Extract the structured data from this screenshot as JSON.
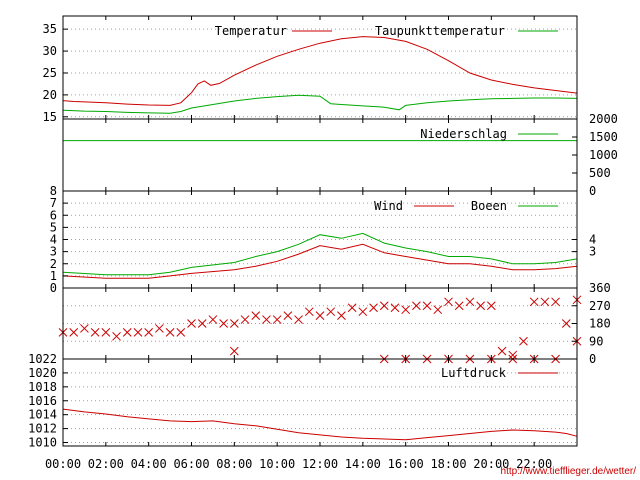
{
  "chart_data": [
    {
      "type": "line",
      "panel": "temperature",
      "yticks": [
        15,
        20,
        25,
        30,
        35
      ],
      "ylim": [
        14.5,
        38
      ],
      "grid": true,
      "legend_position": "top-right",
      "series": [
        {
          "name": "Temperatur",
          "color": "#cc0000",
          "points": [
            [
              0,
              18.7
            ],
            [
              0.5,
              18.5
            ],
            [
              1,
              18.4
            ],
            [
              2,
              18.2
            ],
            [
              3,
              17.9
            ],
            [
              4,
              17.7
            ],
            [
              5,
              17.6
            ],
            [
              5.5,
              18.2
            ],
            [
              6,
              20.5
            ],
            [
              6.3,
              22.5
            ],
            [
              6.6,
              23.2
            ],
            [
              6.9,
              22.2
            ],
            [
              7.3,
              22.6
            ],
            [
              8,
              24.5
            ],
            [
              9,
              26.8
            ],
            [
              10,
              28.8
            ],
            [
              11,
              30.4
            ],
            [
              12,
              31.8
            ],
            [
              13,
              32.8
            ],
            [
              14,
              33.3
            ],
            [
              15,
              33.1
            ],
            [
              16,
              32.2
            ],
            [
              17,
              30.4
            ],
            [
              18,
              27.8
            ],
            [
              19,
              25.0
            ],
            [
              20,
              23.4
            ],
            [
              21,
              22.4
            ],
            [
              22,
              21.6
            ],
            [
              23,
              21.0
            ],
            [
              24,
              20.4
            ]
          ]
        },
        {
          "name": "Taupunkttemperatur",
          "color": "#00aa00",
          "points": [
            [
              0,
              16.5
            ],
            [
              1,
              16.3
            ],
            [
              2,
              16.2
            ],
            [
              3,
              16.0
            ],
            [
              4,
              15.9
            ],
            [
              5,
              15.8
            ],
            [
              5.5,
              16.2
            ],
            [
              6,
              17.0
            ],
            [
              7,
              17.8
            ],
            [
              8,
              18.6
            ],
            [
              9,
              19.2
            ],
            [
              10,
              19.6
            ],
            [
              11,
              19.9
            ],
            [
              12,
              19.7
            ],
            [
              12.5,
              18.0
            ],
            [
              13,
              17.8
            ],
            [
              14,
              17.5
            ],
            [
              15,
              17.2
            ],
            [
              15.7,
              16.6
            ],
            [
              16,
              17.6
            ],
            [
              17,
              18.2
            ],
            [
              18,
              18.6
            ],
            [
              19,
              18.9
            ],
            [
              20,
              19.1
            ],
            [
              21,
              19.2
            ],
            [
              22,
              19.3
            ],
            [
              23,
              19.3
            ],
            [
              24,
              19.2
            ]
          ]
        }
      ]
    },
    {
      "type": "line",
      "panel": "precipitation",
      "yticks_right": [
        0,
        500,
        1000,
        1500,
        2000
      ],
      "ylim": [
        0,
        2000
      ],
      "grid": false,
      "legend_position": "top-right",
      "series": [
        {
          "name": "Niederschlag",
          "color": "#00aa00",
          "points": [
            [
              0,
              1400
            ],
            [
              24,
              1400
            ]
          ]
        }
      ]
    },
    {
      "type": "line",
      "panel": "wind",
      "yticks": [
        0,
        1,
        2,
        3,
        4,
        5,
        6,
        7,
        8
      ],
      "yticks_right": [
        3,
        4
      ],
      "ylim": [
        0,
        8
      ],
      "grid": true,
      "legend_position": "top-right",
      "series": [
        {
          "name": "Wind",
          "color": "#cc0000",
          "points": [
            [
              0,
              1.0
            ],
            [
              2,
              0.8
            ],
            [
              4,
              0.8
            ],
            [
              5,
              1.0
            ],
            [
              6,
              1.2
            ],
            [
              8,
              1.5
            ],
            [
              9,
              1.8
            ],
            [
              10,
              2.2
            ],
            [
              11,
              2.8
            ],
            [
              12,
              3.5
            ],
            [
              13,
              3.2
            ],
            [
              14,
              3.6
            ],
            [
              15,
              2.9
            ],
            [
              16,
              2.6
            ],
            [
              17,
              2.3
            ],
            [
              18,
              2.0
            ],
            [
              19,
              2.0
            ],
            [
              20,
              1.8
            ],
            [
              21,
              1.5
            ],
            [
              22,
              1.5
            ],
            [
              23,
              1.6
            ],
            [
              24,
              1.8
            ]
          ]
        },
        {
          "name": "Boeen",
          "color": "#00aa00",
          "points": [
            [
              0,
              1.3
            ],
            [
              2,
              1.1
            ],
            [
              4,
              1.1
            ],
            [
              5,
              1.3
            ],
            [
              6,
              1.7
            ],
            [
              8,
              2.1
            ],
            [
              9,
              2.6
            ],
            [
              10,
              3.0
            ],
            [
              11,
              3.6
            ],
            [
              12,
              4.4
            ],
            [
              13,
              4.1
            ],
            [
              14,
              4.5
            ],
            [
              15,
              3.7
            ],
            [
              16,
              3.3
            ],
            [
              17,
              3.0
            ],
            [
              18,
              2.6
            ],
            [
              19,
              2.6
            ],
            [
              20,
              2.4
            ],
            [
              21,
              2.0
            ],
            [
              22,
              2.0
            ],
            [
              23,
              2.1
            ],
            [
              24,
              2.4
            ]
          ]
        }
      ]
    },
    {
      "type": "scatter",
      "panel": "wind-direction",
      "yticks_right": [
        0,
        90,
        180,
        270,
        360
      ],
      "ylim": [
        0,
        360
      ],
      "grid": true,
      "marker": "x",
      "series": [
        {
          "name": "",
          "color": "#cc0000",
          "points": [
            [
              0,
              135
            ],
            [
              0.5,
              135
            ],
            [
              1,
              155
            ],
            [
              1.5,
              135
            ],
            [
              2,
              135
            ],
            [
              2.5,
              115
            ],
            [
              3,
              135
            ],
            [
              3.5,
              135
            ],
            [
              4,
              135
            ],
            [
              4.5,
              155
            ],
            [
              5,
              135
            ],
            [
              5.5,
              135
            ],
            [
              6,
              180
            ],
            [
              6.5,
              180
            ],
            [
              7,
              200
            ],
            [
              7.5,
              180
            ],
            [
              8,
              180
            ],
            [
              8.5,
              200
            ],
            [
              9,
              220
            ],
            [
              9.5,
              200
            ],
            [
              10,
              200
            ],
            [
              10.5,
              220
            ],
            [
              11,
              200
            ],
            [
              11.5,
              240
            ],
            [
              12,
              220
            ],
            [
              12.5,
              240
            ],
            [
              13,
              220
            ],
            [
              13.5,
              260
            ],
            [
              14,
              240
            ],
            [
              14.5,
              260
            ],
            [
              15,
              270
            ],
            [
              15.5,
              260
            ],
            [
              16,
              250
            ],
            [
              16.5,
              270
            ],
            [
              17,
              270
            ],
            [
              17.5,
              250
            ],
            [
              18,
              290
            ],
            [
              18.5,
              270
            ],
            [
              19,
              290
            ],
            [
              19.5,
              270
            ],
            [
              20,
              270
            ],
            [
              20.5,
              40
            ],
            [
              21,
              20
            ],
            [
              21.5,
              90
            ],
            [
              22,
              290
            ],
            [
              22.5,
              290
            ],
            [
              23,
              290
            ],
            [
              23.5,
              180
            ],
            [
              24,
              90
            ],
            [
              15,
              0
            ],
            [
              16,
              0
            ],
            [
              17,
              0
            ],
            [
              18,
              0
            ],
            [
              19,
              0
            ],
            [
              20,
              0
            ],
            [
              21,
              0
            ],
            [
              22,
              0
            ],
            [
              23,
              0
            ],
            [
              8,
              40
            ],
            [
              24,
              300
            ]
          ]
        }
      ]
    },
    {
      "type": "line",
      "panel": "pressure",
      "yticks": [
        1010,
        1012,
        1014,
        1016,
        1018,
        1020,
        1022
      ],
      "ylim": [
        1009.5,
        1022
      ],
      "grid": true,
      "legend_position": "top-right",
      "series": [
        {
          "name": "Luftdruck",
          "color": "#cc0000",
          "points": [
            [
              0,
              1014.8
            ],
            [
              1,
              1014.4
            ],
            [
              2,
              1014.1
            ],
            [
              3,
              1013.7
            ],
            [
              4,
              1013.4
            ],
            [
              5,
              1013.1
            ],
            [
              6,
              1013.0
            ],
            [
              7,
              1013.1
            ],
            [
              8,
              1012.7
            ],
            [
              9,
              1012.4
            ],
            [
              10,
              1011.9
            ],
            [
              11,
              1011.4
            ],
            [
              12,
              1011.1
            ],
            [
              13,
              1010.8
            ],
            [
              14,
              1010.6
            ],
            [
              15,
              1010.5
            ],
            [
              16,
              1010.4
            ],
            [
              17,
              1010.7
            ],
            [
              18,
              1011.0
            ],
            [
              19,
              1011.3
            ],
            [
              20,
              1011.6
            ],
            [
              21,
              1011.8
            ],
            [
              22,
              1011.7
            ],
            [
              23,
              1011.5
            ],
            [
              23.5,
              1011.3
            ],
            [
              24,
              1010.9
            ]
          ]
        }
      ]
    }
  ],
  "xaxis": {
    "ticks": [
      "00:00",
      "02:00",
      "04:00",
      "06:00",
      "08:00",
      "10:00",
      "12:00",
      "14:00",
      "16:00",
      "18:00",
      "20:00",
      "22:00"
    ],
    "xlim": [
      0,
      24
    ]
  },
  "credit": "http://www.tiefflieger.de/wetter/"
}
